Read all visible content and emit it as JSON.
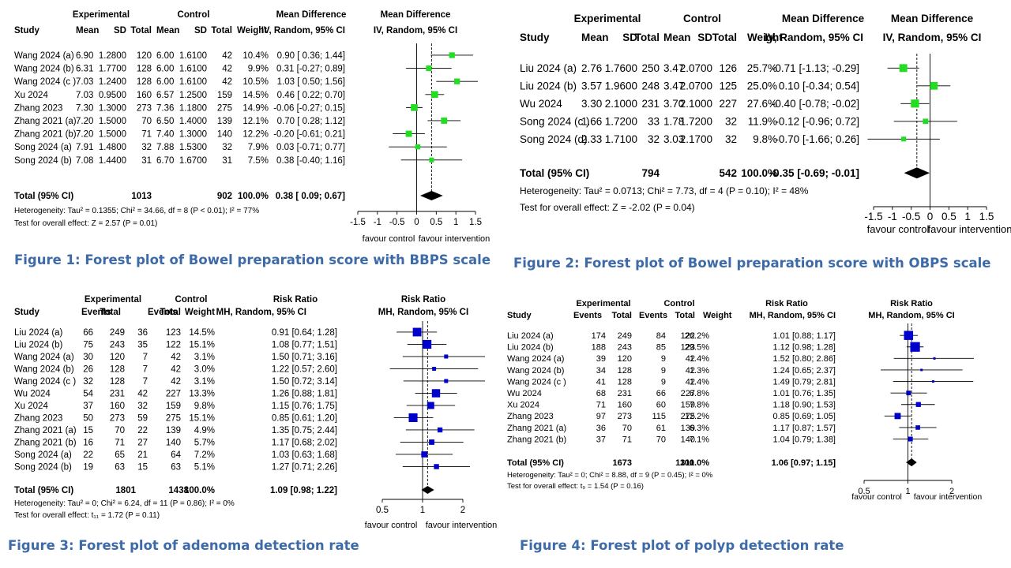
{
  "figures": [
    {
      "caption": "Figure 1: Forest plot of Bowel preparation score with BBPS scale",
      "headers": {
        "group1": "Experimental",
        "group2": "Control",
        "effect": "Mean Difference",
        "plot_effect": "Mean Difference",
        "cols": [
          "Study",
          "Mean",
          "SD",
          "Total",
          "Mean",
          "SD",
          "Total",
          "Weight",
          "IV, Random, 95% CI",
          "IV, Random, 95% CI"
        ]
      },
      "rows": [
        {
          "study": "Wang 2024 (a)",
          "c1": "6.90",
          "c2": "1.2800",
          "c3": "120",
          "c4": "6.00",
          "c5": "1.6100",
          "c6": "42",
          "weight": "10.4%",
          "ci": "0.90 [ 0.36; 1.44]"
        },
        {
          "study": "Wang 2024 (b)",
          "c1": "6.31",
          "c2": "1.7700",
          "c3": "128",
          "c4": "6.00",
          "c5": "1.6100",
          "c6": "42",
          "weight": "9.9%",
          "ci": "0.31 [-0.27; 0.89]"
        },
        {
          "study": "Wang 2024 (c )",
          "c1": "7.03",
          "c2": "1.2400",
          "c3": "128",
          "c4": "6.00",
          "c5": "1.6100",
          "c6": "42",
          "weight": "10.5%",
          "ci": "1.03 [ 0.50; 1.56]"
        },
        {
          "study": "Xu 2024",
          "c1": "7.03",
          "c2": "0.9500",
          "c3": "160",
          "c4": "6.57",
          "c5": "1.2500",
          "c6": "159",
          "weight": "14.5%",
          "ci": "0.46 [ 0.22; 0.70]"
        },
        {
          "study": "Zhang 2023",
          "c1": "7.30",
          "c2": "1.3000",
          "c3": "273",
          "c4": "7.36",
          "c5": "1.1800",
          "c6": "275",
          "weight": "14.9%",
          "ci": "-0.06 [-0.27; 0.15]"
        },
        {
          "study": "Zhang 2021 (a)",
          "c1": "7.20",
          "c2": "1.5000",
          "c3": "70",
          "c4": "6.50",
          "c5": "1.4000",
          "c6": "139",
          "weight": "12.1%",
          "ci": "0.70 [ 0.28; 1.12]"
        },
        {
          "study": "Zhang 2021 (b)",
          "c1": "7.20",
          "c2": "1.5000",
          "c3": "71",
          "c4": "7.40",
          "c5": "1.3000",
          "c6": "140",
          "weight": "12.2%",
          "ci": "-0.20 [-0.61; 0.21]"
        },
        {
          "study": "Song 2024 (a)",
          "c1": "7.91",
          "c2": "1.4800",
          "c3": "32",
          "c4": "7.88",
          "c5": "1.5300",
          "c6": "32",
          "weight": "7.9%",
          "ci": "0.03 [-0.71; 0.77]"
        },
        {
          "study": "Song 2024 (b)",
          "c1": "7.08",
          "c2": "1.4400",
          "c3": "31",
          "c4": "6.70",
          "c5": "1.6700",
          "c6": "31",
          "weight": "7.5%",
          "ci": "0.38 [-0.40; 1.16]"
        }
      ],
      "total": {
        "label": "Total (95% CI)",
        "n1": "1013",
        "n2": "902",
        "weight": "100.0%",
        "ci": "0.38 [ 0.09; 0.67]"
      },
      "heterogeneity": "Heterogeneity: Tau² = 0.1355; Chi² = 34.66, df = 8 (P < 0.01); I² = 77%",
      "overall_test": "Test for overall effect: Z = 2.57 (P = 0.01)",
      "favour_left": "favour control",
      "favour_right": "favour intervention"
    },
    {
      "caption": "Figure 2: Forest plot of Bowel preparation score with OBPS scale",
      "headers": {
        "group1": "Experimental",
        "group2": "Control",
        "effect": "Mean Difference",
        "plot_effect": "Mean Difference",
        "cols": [
          "Study",
          "Mean",
          "SD",
          "Total",
          "Mean",
          "SD",
          "Total",
          "Weight",
          "IV, Random, 95% CI",
          "IV, Random, 95% CI"
        ]
      },
      "rows": [
        {
          "study": "Liu 2024 (a)",
          "c1": "2.76",
          "c2": "1.7600",
          "c3": "250",
          "c4": "3.47",
          "c5": "2.0700",
          "c6": "126",
          "weight": "25.7%",
          "ci": "-0.71 [-1.13; -0.29]"
        },
        {
          "study": "Liu 2024 (b)",
          "c1": "3.57",
          "c2": "1.9600",
          "c3": "248",
          "c4": "3.47",
          "c5": "2.0700",
          "c6": "125",
          "weight": "25.0%",
          "ci": "0.10 [-0.34; 0.54]"
        },
        {
          "study": "Wu 2024",
          "c1": "3.30",
          "c2": "2.1000",
          "c3": "231",
          "c4": "3.70",
          "c5": "2.1000",
          "c6": "227",
          "weight": "27.6%",
          "ci": "-0.40 [-0.78; -0.02]"
        },
        {
          "study": "Song 2024 (c )",
          "c1": "1.66",
          "c2": "1.7200",
          "c3": "33",
          "c4": "1.78",
          "c5": "1.7200",
          "c6": "32",
          "weight": "11.9%",
          "ci": "-0.12 [-0.96; 0.72]"
        },
        {
          "study": "Song 2024 (d)",
          "c1": "2.33",
          "c2": "1.7100",
          "c3": "32",
          "c4": "3.03",
          "c5": "2.1700",
          "c6": "32",
          "weight": "9.8%",
          "ci": "-0.70 [-1.66; 0.26]"
        }
      ],
      "total": {
        "label": "Total (95% CI)",
        "n1": "794",
        "n2": "542",
        "weight": "100.0%",
        "ci": "-0.35 [-0.69; -0.01]"
      },
      "heterogeneity": "Heterogeneity: Tau² = 0.0713; Chi² = 7.73, df = 4 (P = 0.10); I² = 48%",
      "overall_test": "Test for overall effect: Z = -2.02 (P = 0.04)",
      "favour_left": "favour control",
      "favour_right": "favour intervention"
    },
    {
      "caption": "Figure 3: Forest plot of adenoma detection rate",
      "headers": {
        "group1": "Experimental",
        "group2": "Control",
        "effect": "Risk Ratio",
        "plot_effect": "Risk Ratio",
        "cols": [
          "Study",
          "Events",
          "Total",
          "Events",
          "Total",
          "Weight",
          "MH, Random, 95% CI",
          "MH, Random, 95% CI"
        ]
      },
      "rows": [
        {
          "study": "Liu 2024 (a)",
          "c1": "66",
          "c2": "249",
          "c3": "36",
          "c4": "123",
          "weight": "14.5%",
          "ci": "0.91 [0.64; 1.28]"
        },
        {
          "study": "Liu 2024 (b)",
          "c1": "75",
          "c2": "243",
          "c3": "35",
          "c4": "122",
          "weight": "15.1%",
          "ci": "1.08 [0.77; 1.51]"
        },
        {
          "study": "Wang 2024 (a)",
          "c1": "30",
          "c2": "120",
          "c3": "7",
          "c4": "42",
          "weight": "3.1%",
          "ci": "1.50 [0.71; 3.16]"
        },
        {
          "study": "Wang 2024 (b)",
          "c1": "26",
          "c2": "128",
          "c3": "7",
          "c4": "42",
          "weight": "3.0%",
          "ci": "1.22 [0.57; 2.60]"
        },
        {
          "study": "Wang 2024 (c )",
          "c1": "32",
          "c2": "128",
          "c3": "7",
          "c4": "42",
          "weight": "3.1%",
          "ci": "1.50 [0.72; 3.14]"
        },
        {
          "study": "Wu 2024",
          "c1": "54",
          "c2": "231",
          "c3": "42",
          "c4": "227",
          "weight": "13.3%",
          "ci": "1.26 [0.88; 1.81]"
        },
        {
          "study": "Xu 2024",
          "c1": "37",
          "c2": "160",
          "c3": "32",
          "c4": "159",
          "weight": "9.8%",
          "ci": "1.15 [0.76; 1.75]"
        },
        {
          "study": "Zhang 2023",
          "c1": "50",
          "c2": "273",
          "c3": "59",
          "c4": "275",
          "weight": "15.1%",
          "ci": "0.85 [0.61; 1.20]"
        },
        {
          "study": "Zhang 2021 (a)",
          "c1": "15",
          "c2": "70",
          "c3": "22",
          "c4": "139",
          "weight": "4.9%",
          "ci": "1.35 [0.75; 2.44]"
        },
        {
          "study": "Zhang 2021 (b)",
          "c1": "16",
          "c2": "71",
          "c3": "27",
          "c4": "140",
          "weight": "5.7%",
          "ci": "1.17 [0.68; 2.02]"
        },
        {
          "study": "Song 2024 (a)",
          "c1": "22",
          "c2": "65",
          "c3": "21",
          "c4": "64",
          "weight": "7.2%",
          "ci": "1.03 [0.63; 1.68]"
        },
        {
          "study": "Song 2024 (b)",
          "c1": "19",
          "c2": "63",
          "c3": "15",
          "c4": "63",
          "weight": "5.1%",
          "ci": "1.27 [0.71; 2.26]"
        }
      ],
      "total": {
        "label": "Total (95% CI)",
        "n1": "1801",
        "n2": "1438",
        "weight": "100.0%",
        "ci": "1.09 [0.98; 1.22]"
      },
      "heterogeneity": "Heterogeneity: Tau² = 0; Chi² = 6.24, df = 11 (P = 0.86); I² = 0%",
      "overall_test": "Test for overall effect: t₁₁ = 1.72 (P = 0.11)",
      "favour_left": "favour control",
      "favour_right": "favour intervention"
    },
    {
      "caption": "Figure 4: Forest plot of polyp detection rate",
      "headers": {
        "group1": "Experimental",
        "group2": "Control",
        "effect": "Risk Ratio",
        "plot_effect": "Risk Ratio",
        "cols": [
          "Study",
          "Events",
          "Total",
          "Events",
          "Total",
          "Weight",
          "MH, Random, 95% CI",
          "MH, Random, 95% CI"
        ]
      },
      "rows": [
        {
          "study": "Liu 2024 (a)",
          "c1": "174",
          "c2": "249",
          "c3": "84",
          "c4": "122",
          "weight": "26.2%",
          "ci": "1.01 [0.88; 1.17]"
        },
        {
          "study": "Liu 2024 (b)",
          "c1": "188",
          "c2": "243",
          "c3": "85",
          "c4": "123",
          "weight": "29.5%",
          "ci": "1.12 [0.98; 1.28]"
        },
        {
          "study": "Wang 2024 (a)",
          "c1": "39",
          "c2": "120",
          "c3": "9",
          "c4": "42",
          "weight": "1.4%",
          "ci": "1.52 [0.80; 2.86]"
        },
        {
          "study": "Wang 2024 (b)",
          "c1": "34",
          "c2": "128",
          "c3": "9",
          "c4": "42",
          "weight": "1.3%",
          "ci": "1.24 [0.65; 2.37]"
        },
        {
          "study": "Wang 2024 (c )",
          "c1": "41",
          "c2": "128",
          "c3": "9",
          "c4": "42",
          "weight": "1.4%",
          "ci": "1.49 [0.79; 2.81]"
        },
        {
          "study": "Wu 2024",
          "c1": "68",
          "c2": "231",
          "c3": "66",
          "c4": "227",
          "weight": "6.8%",
          "ci": "1.01 [0.76; 1.35]"
        },
        {
          "study": "Xu 2024",
          "c1": "71",
          "c2": "160",
          "c3": "60",
          "c4": "159",
          "weight": "7.8%",
          "ci": "1.18 [0.90; 1.53]"
        },
        {
          "study": "Zhang 2023",
          "c1": "97",
          "c2": "273",
          "c3": "115",
          "c4": "275",
          "weight": "12.2%",
          "ci": "0.85 [0.69; 1.05]"
        },
        {
          "study": "Zhang 2021 (a)",
          "c1": "36",
          "c2": "70",
          "c3": "61",
          "c4": "139",
          "weight": "6.3%",
          "ci": "1.17 [0.87; 1.57]"
        },
        {
          "study": "Zhang 2021 (b)",
          "c1": "37",
          "c2": "71",
          "c3": "70",
          "c4": "140",
          "weight": "7.1%",
          "ci": "1.04 [0.79; 1.38]"
        }
      ],
      "total": {
        "label": "Total (95% CI)",
        "n1": "1673",
        "n2": "1311",
        "weight": "100.0%",
        "ci": "1.06 [0.97; 1.15]"
      },
      "heterogeneity": "Heterogeneity: Tau² = 0; Chi² = 8.88, df = 9 (P = 0.45); I² = 0%",
      "overall_test": "Test for overall effect: t₉ = 1.54 (P = 0.16)",
      "favour_left": "favour control",
      "favour_right": "favour intervention"
    }
  ],
  "chart_data": [
    {
      "type": "forest",
      "scale": "linear",
      "xlim": [
        -1.5,
        1.5
      ],
      "ticks": [
        -1.5,
        -1,
        -0.5,
        0,
        0.5,
        1,
        1.5
      ],
      "tick_labels": [
        "-1.5",
        "-1",
        "-0.5",
        "0",
        "0.5",
        "1",
        "1.5"
      ],
      "null_value": 0,
      "pooled_line": 0.38,
      "marker_color": "#22dd22",
      "studies": [
        {
          "est": 0.9,
          "lo": 0.36,
          "hi": 1.44,
          "w": 10.4
        },
        {
          "est": 0.31,
          "lo": -0.27,
          "hi": 0.89,
          "w": 9.9
        },
        {
          "est": 1.03,
          "lo": 0.5,
          "hi": 1.56,
          "w": 10.5
        },
        {
          "est": 0.46,
          "lo": 0.22,
          "hi": 0.7,
          "w": 14.5
        },
        {
          "est": -0.06,
          "lo": -0.27,
          "hi": 0.15,
          "w": 14.9
        },
        {
          "est": 0.7,
          "lo": 0.28,
          "hi": 1.12,
          "w": 12.1
        },
        {
          "est": -0.2,
          "lo": -0.61,
          "hi": 0.21,
          "w": 12.2
        },
        {
          "est": 0.03,
          "lo": -0.71,
          "hi": 0.77,
          "w": 7.9
        },
        {
          "est": 0.38,
          "lo": -0.4,
          "hi": 1.16,
          "w": 7.5
        }
      ],
      "pooled": {
        "est": 0.38,
        "lo": 0.09,
        "hi": 0.67
      }
    },
    {
      "type": "forest",
      "scale": "linear",
      "xlim": [
        -1.5,
        1.5
      ],
      "ticks": [
        -1.5,
        -1,
        -0.5,
        0,
        0.5,
        1,
        1.5
      ],
      "tick_labels": [
        "-1.5",
        "-1",
        "-0.5",
        "0",
        "0.5",
        "1",
        "1.5"
      ],
      "null_value": 0,
      "pooled_line": -0.35,
      "marker_color": "#22dd22",
      "studies": [
        {
          "est": -0.71,
          "lo": -1.13,
          "hi": -0.29,
          "w": 25.7
        },
        {
          "est": 0.1,
          "lo": -0.34,
          "hi": 0.54,
          "w": 25.0
        },
        {
          "est": -0.4,
          "lo": -0.78,
          "hi": -0.02,
          "w": 27.6
        },
        {
          "est": -0.12,
          "lo": -0.96,
          "hi": 0.72,
          "w": 11.9
        },
        {
          "est": -0.7,
          "lo": -1.66,
          "hi": 0.26,
          "w": 9.8
        }
      ],
      "pooled": {
        "est": -0.35,
        "lo": -0.69,
        "hi": -0.01
      }
    },
    {
      "type": "forest",
      "scale": "log",
      "xlim": [
        0.5,
        2
      ],
      "ticks": [
        0.5,
        1,
        2
      ],
      "tick_labels": [
        "0.5",
        "1",
        "2"
      ],
      "null_value": 1,
      "pooled_line": 1.09,
      "marker_color": "#0000cc",
      "studies": [
        {
          "est": 0.91,
          "lo": 0.64,
          "hi": 1.28,
          "w": 14.5
        },
        {
          "est": 1.08,
          "lo": 0.77,
          "hi": 1.51,
          "w": 15.1
        },
        {
          "est": 1.5,
          "lo": 0.71,
          "hi": 3.16,
          "w": 3.1
        },
        {
          "est": 1.22,
          "lo": 0.57,
          "hi": 2.6,
          "w": 3.0
        },
        {
          "est": 1.5,
          "lo": 0.72,
          "hi": 3.14,
          "w": 3.1
        },
        {
          "est": 1.26,
          "lo": 0.88,
          "hi": 1.81,
          "w": 13.3
        },
        {
          "est": 1.15,
          "lo": 0.76,
          "hi": 1.75,
          "w": 9.8
        },
        {
          "est": 0.85,
          "lo": 0.61,
          "hi": 1.2,
          "w": 15.1
        },
        {
          "est": 1.35,
          "lo": 0.75,
          "hi": 2.44,
          "w": 4.9
        },
        {
          "est": 1.17,
          "lo": 0.68,
          "hi": 2.02,
          "w": 5.7
        },
        {
          "est": 1.03,
          "lo": 0.63,
          "hi": 1.68,
          "w": 7.2
        },
        {
          "est": 1.27,
          "lo": 0.71,
          "hi": 2.26,
          "w": 5.1
        }
      ],
      "pooled": {
        "est": 1.09,
        "lo": 0.98,
        "hi": 1.22
      }
    },
    {
      "type": "forest",
      "scale": "log",
      "xlim": [
        0.5,
        2
      ],
      "ticks": [
        0.5,
        1,
        2
      ],
      "tick_labels": [
        "0.5",
        "1",
        "2"
      ],
      "null_value": 1,
      "pooled_line": 1.06,
      "marker_color": "#0000cc",
      "studies": [
        {
          "est": 1.01,
          "lo": 0.88,
          "hi": 1.17,
          "w": 26.2
        },
        {
          "est": 1.12,
          "lo": 0.98,
          "hi": 1.28,
          "w": 29.5
        },
        {
          "est": 1.52,
          "lo": 0.8,
          "hi": 2.86,
          "w": 1.4
        },
        {
          "est": 1.24,
          "lo": 0.65,
          "hi": 2.37,
          "w": 1.3
        },
        {
          "est": 1.49,
          "lo": 0.79,
          "hi": 2.81,
          "w": 1.4
        },
        {
          "est": 1.01,
          "lo": 0.76,
          "hi": 1.35,
          "w": 6.8
        },
        {
          "est": 1.18,
          "lo": 0.9,
          "hi": 1.53,
          "w": 7.8
        },
        {
          "est": 0.85,
          "lo": 0.69,
          "hi": 1.05,
          "w": 12.2
        },
        {
          "est": 1.17,
          "lo": 0.87,
          "hi": 1.57,
          "w": 6.3
        },
        {
          "est": 1.04,
          "lo": 0.79,
          "hi": 1.38,
          "w": 7.1
        }
      ],
      "pooled": {
        "est": 1.06,
        "lo": 0.97,
        "hi": 1.15
      }
    }
  ]
}
